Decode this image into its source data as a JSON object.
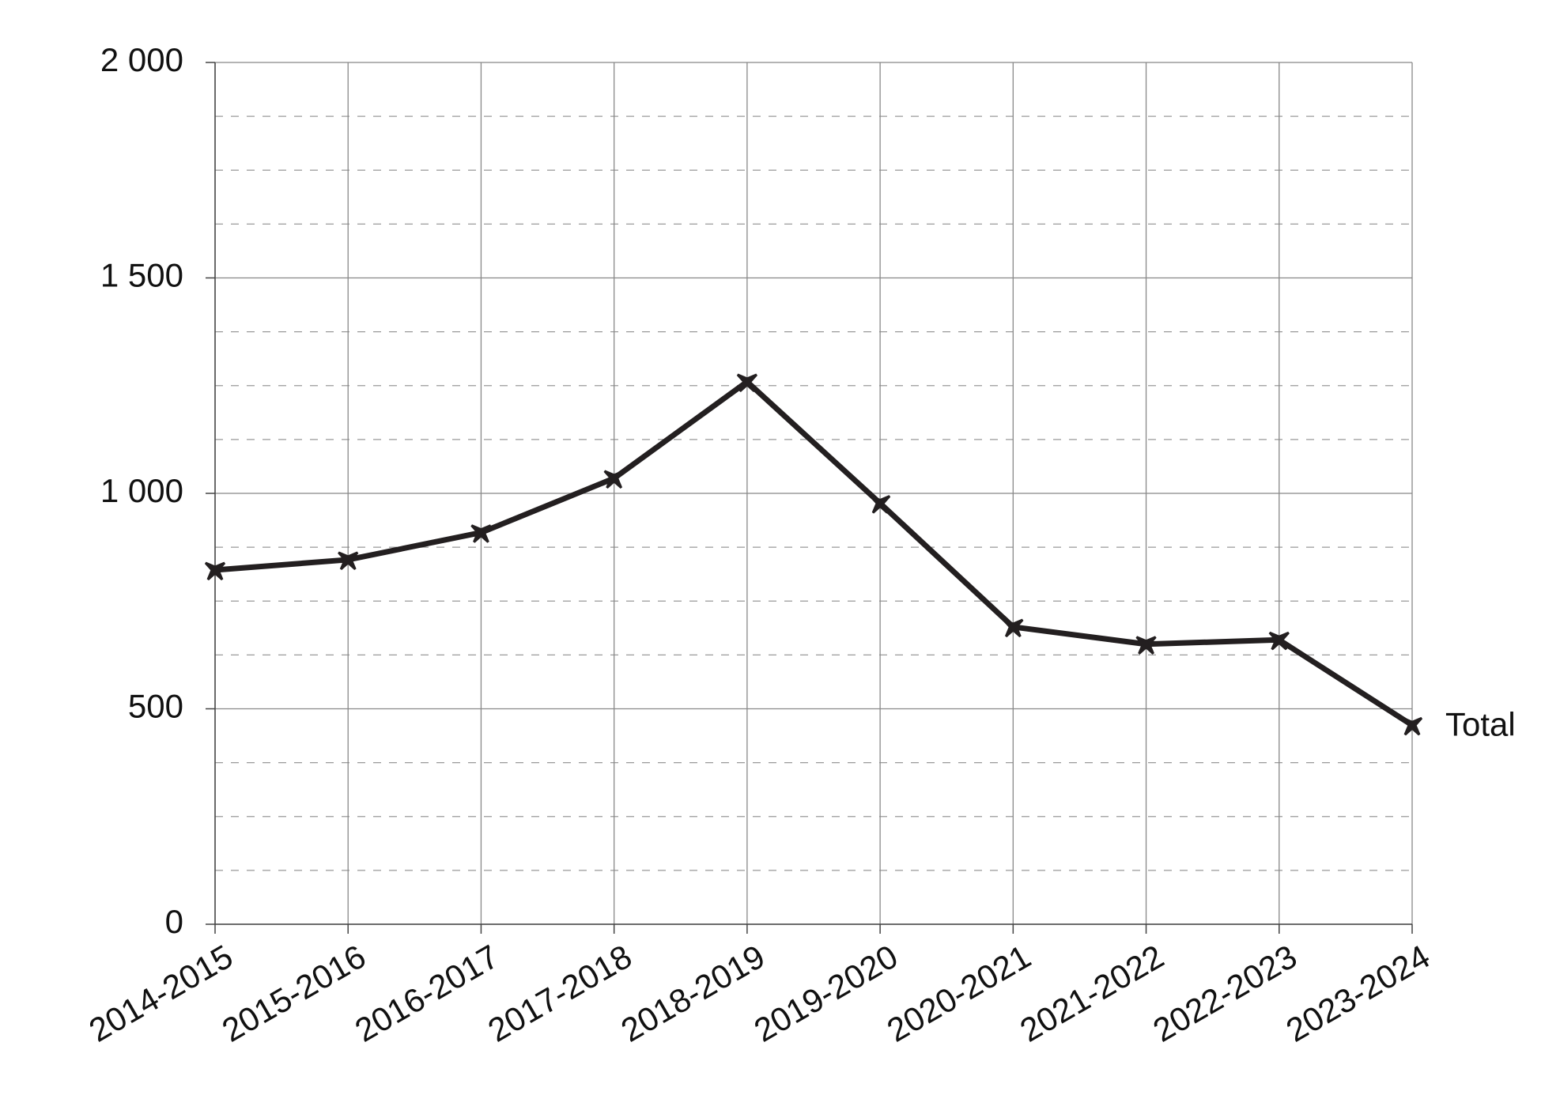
{
  "chart_data": {
    "type": "line",
    "categories": [
      "2014-2015",
      "2015-2016",
      "2016-2017",
      "2017-2018",
      "2018-2019",
      "2019-2020",
      "2020-2021",
      "2021-2022",
      "2022-2023",
      "2023-2024"
    ],
    "series": [
      {
        "name": "Total",
        "color": "#231f20",
        "values": [
          822,
          846,
          909,
          1035,
          1259,
          977,
          690,
          650,
          660,
          462
        ]
      }
    ],
    "ylim": [
      0,
      2000
    ],
    "yticks": [
      0,
      500,
      {
        "value": 1000,
        "label": "1 000"
      },
      {
        "value": 1500,
        "label": "1 500"
      },
      {
        "value": 2000,
        "label": "2 000"
      }
    ],
    "minor_yticks": [
      125,
      250,
      375,
      625,
      750,
      875,
      1125,
      1250,
      1375,
      1625,
      1750,
      1875
    ],
    "grid": true
  }
}
